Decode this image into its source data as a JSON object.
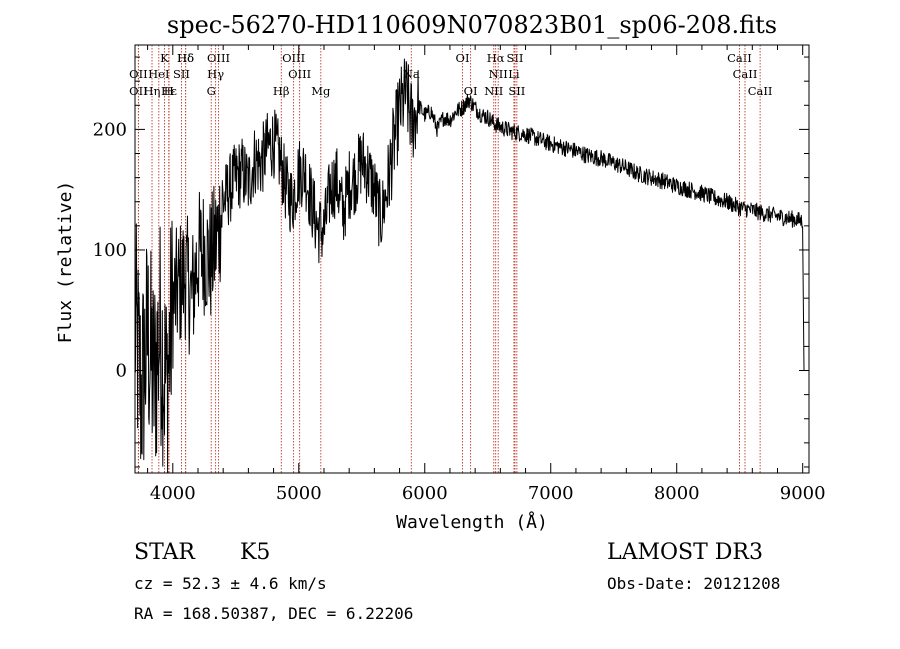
{
  "chart_data": {
    "type": "line",
    "title": "spec-56270-HD110609N070823B01_sp06-208.fits",
    "xlabel": "Wavelength (Å)",
    "ylabel": "Flux (relative)",
    "xlim": [
      3700,
      9050
    ],
    "ylim": [
      -85,
      270
    ],
    "xticks": [
      4000,
      5000,
      6000,
      7000,
      8000,
      9000
    ],
    "yticks": [
      0,
      100,
      200
    ],
    "grid": false,
    "series": [
      {
        "name": "flux",
        "color": "#000000",
        "anchors": [
          [
            3700,
            40
          ],
          [
            3750,
            -20
          ],
          [
            3800,
            30
          ],
          [
            3850,
            -10
          ],
          [
            3900,
            35
          ],
          [
            3950,
            -15
          ],
          [
            4000,
            55
          ],
          [
            4050,
            70
          ],
          [
            4100,
            80
          ],
          [
            4150,
            60
          ],
          [
            4200,
            95
          ],
          [
            4250,
            100
          ],
          [
            4300,
            90
          ],
          [
            4350,
            110
          ],
          [
            4400,
            140
          ],
          [
            4450,
            150
          ],
          [
            4500,
            160
          ],
          [
            4550,
            165
          ],
          [
            4600,
            155
          ],
          [
            4650,
            175
          ],
          [
            4700,
            172
          ],
          [
            4750,
            185
          ],
          [
            4800,
            190
          ],
          [
            4850,
            175
          ],
          [
            4900,
            150
          ],
          [
            4950,
            140
          ],
          [
            5000,
            165
          ],
          [
            5050,
            165
          ],
          [
            5100,
            140
          ],
          [
            5150,
            118
          ],
          [
            5200,
            115
          ],
          [
            5250,
            150
          ],
          [
            5300,
            158
          ],
          [
            5350,
            130
          ],
          [
            5400,
            155
          ],
          [
            5450,
            160
          ],
          [
            5500,
            175
          ],
          [
            5550,
            165
          ],
          [
            5600,
            150
          ],
          [
            5650,
            125
          ],
          [
            5700,
            150
          ],
          [
            5750,
            185
          ],
          [
            5800,
            215
          ],
          [
            5850,
            230
          ],
          [
            5900,
            205
          ],
          [
            5950,
            220
          ],
          [
            6000,
            212
          ],
          [
            6050,
            215
          ],
          [
            6100,
            200
          ],
          [
            6150,
            210
          ],
          [
            6200,
            208
          ],
          [
            6250,
            215
          ],
          [
            6300,
            218
          ],
          [
            6350,
            225
          ],
          [
            6400,
            218
          ],
          [
            6450,
            212
          ],
          [
            6500,
            210
          ],
          [
            6550,
            205
          ],
          [
            6600,
            202
          ],
          [
            6700,
            198
          ],
          [
            6800,
            196
          ],
          [
            6900,
            192
          ],
          [
            7000,
            188
          ],
          [
            7100,
            185
          ],
          [
            7200,
            182
          ],
          [
            7300,
            178
          ],
          [
            7400,
            176
          ],
          [
            7500,
            172
          ],
          [
            7600,
            168
          ],
          [
            7700,
            163
          ],
          [
            7800,
            160
          ],
          [
            7900,
            157
          ],
          [
            8000,
            153
          ],
          [
            8100,
            150
          ],
          [
            8200,
            147
          ],
          [
            8300,
            143
          ],
          [
            8400,
            140
          ],
          [
            8500,
            135
          ],
          [
            8600,
            133
          ],
          [
            8700,
            130
          ],
          [
            8800,
            128
          ],
          [
            8900,
            126
          ],
          [
            9000,
            124
          ],
          [
            9010,
            0
          ]
        ]
      }
    ],
    "lines": [
      {
        "label": "Hδ",
        "wave": 4102,
        "row": 1
      },
      {
        "label": "K",
        "wave": 3934,
        "row": 1
      },
      {
        "label": "Hδ",
        "wave": 4102,
        "row": 1
      },
      {
        "label": "OIII",
        "wave": 4363,
        "row": 1
      },
      {
        "label": "OIII",
        "wave": 4959,
        "row": 1
      },
      {
        "label": "OI",
        "wave": 6300,
        "row": 1
      },
      {
        "label": "Hα",
        "wave": 6563,
        "row": 1
      },
      {
        "label": "SII",
        "wave": 6716,
        "row": 1
      },
      {
        "label": "CaII",
        "wave": 8498,
        "row": 1
      },
      {
        "label": "OII",
        "wave": 3727,
        "row": 2
      },
      {
        "label": "HeI",
        "wave": 3889,
        "row": 2
      },
      {
        "label": "SII",
        "wave": 4069,
        "row": 2
      },
      {
        "label": "Hγ",
        "wave": 4340,
        "row": 2
      },
      {
        "label": "OIII",
        "wave": 5007,
        "row": 2
      },
      {
        "label": "Na",
        "wave": 5893,
        "row": 2
      },
      {
        "label": "NII",
        "wave": 6583,
        "row": 2
      },
      {
        "label": "Li",
        "wave": 6708,
        "row": 2
      },
      {
        "label": "CaII",
        "wave": 8542,
        "row": 2
      },
      {
        "label": "OII",
        "wave": 3727,
        "row": 3
      },
      {
        "label": "Hε",
        "wave": 3970,
        "row": 3
      },
      {
        "label": "Hη",
        "wave": 3835,
        "row": 3
      },
      {
        "label": "H",
        "wave": 3968,
        "row": 3
      },
      {
        "label": "G",
        "wave": 4305,
        "row": 3
      },
      {
        "label": "Hβ",
        "wave": 4861,
        "row": 3
      },
      {
        "label": "Mg",
        "wave": 5175,
        "row": 3
      },
      {
        "label": "OI",
        "wave": 6364,
        "row": 3
      },
      {
        "label": "NII",
        "wave": 6548,
        "row": 3
      },
      {
        "label": "SII",
        "wave": 6731,
        "row": 3
      },
      {
        "label": "CaII",
        "wave": 8662,
        "row": 3
      }
    ]
  },
  "info": {
    "class": "STAR",
    "subclass": "K5",
    "survey": "LAMOST DR3",
    "cz": "cz = 52.3 ± 4.6 km/s",
    "obs_date": "Obs-Date: 20121208",
    "coords": "RA = 168.50387, DEC =   6.22206"
  }
}
